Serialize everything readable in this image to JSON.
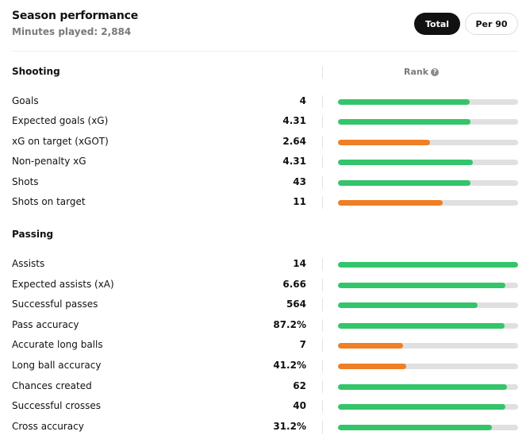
{
  "header": {
    "title": "Season performance",
    "subtitle": "Minutes played: 2,884",
    "toggle": {
      "active_label": "Total",
      "inactive_label": "Per 90"
    }
  },
  "rank_header": {
    "label": "Rank",
    "help_symbol": "?"
  },
  "colors": {
    "high": "#34c46a",
    "mid": "#ef7e24",
    "track": "#e0e0e0"
  },
  "sections": [
    {
      "title": "Shooting",
      "stats": [
        {
          "label": "Goals",
          "value": "4",
          "rank_fraction": 0.73,
          "tier": "high"
        },
        {
          "label": "Expected goals (xG)",
          "value": "4.31",
          "rank_fraction": 0.735,
          "tier": "high"
        },
        {
          "label": "xG on target (xGOT)",
          "value": "2.64",
          "rank_fraction": 0.51,
          "tier": "mid"
        },
        {
          "label": "Non-penalty xG",
          "value": "4.31",
          "rank_fraction": 0.75,
          "tier": "high"
        },
        {
          "label": "Shots",
          "value": "43",
          "rank_fraction": 0.735,
          "tier": "high"
        },
        {
          "label": "Shots on target",
          "value": "11",
          "rank_fraction": 0.58,
          "tier": "mid"
        }
      ]
    },
    {
      "title": "Passing",
      "stats": [
        {
          "label": "Assists",
          "value": "14",
          "rank_fraction": 1.0,
          "tier": "high"
        },
        {
          "label": "Expected assists (xA)",
          "value": "6.66",
          "rank_fraction": 0.93,
          "tier": "high"
        },
        {
          "label": "Successful passes",
          "value": "564",
          "rank_fraction": 0.775,
          "tier": "high"
        },
        {
          "label": "Pass accuracy",
          "value": "87.2%",
          "rank_fraction": 0.925,
          "tier": "high"
        },
        {
          "label": "Accurate long balls",
          "value": "7",
          "rank_fraction": 0.36,
          "tier": "mid"
        },
        {
          "label": "Long ball accuracy",
          "value": "41.2%",
          "rank_fraction": 0.38,
          "tier": "mid"
        },
        {
          "label": "Chances created",
          "value": "62",
          "rank_fraction": 0.94,
          "tier": "high"
        },
        {
          "label": "Successful crosses",
          "value": "40",
          "rank_fraction": 0.93,
          "tier": "high"
        },
        {
          "label": "Cross accuracy",
          "value": "31.2%",
          "rank_fraction": 0.855,
          "tier": "high"
        }
      ]
    }
  ]
}
